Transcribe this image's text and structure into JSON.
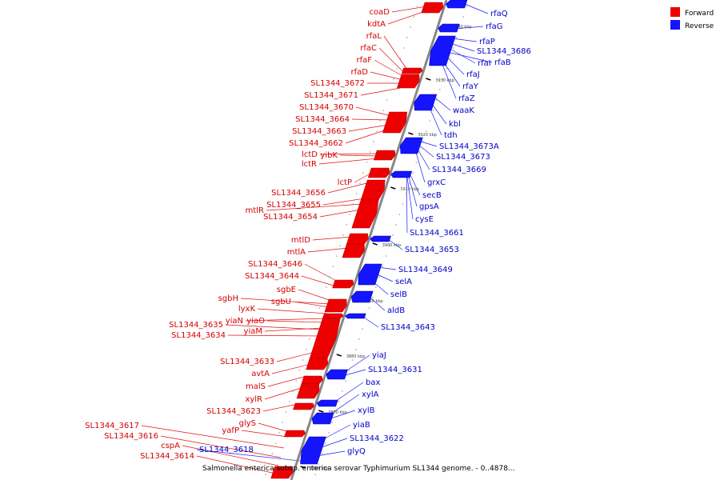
{
  "colors": {
    "forward": "#ee0000",
    "reverse": "#1414ff",
    "backbone": "#888888"
  },
  "legend": [
    {
      "label": "Forward",
      "strand": "forward"
    },
    {
      "label": "Reverse",
      "strand": "reverse"
    }
  ],
  "caption": "Salmonella enterica subsp. enterica serovar Typhimurium SL1344 genome. - 0..4878...",
  "ticks": [
    "3940 kbp",
    "3930 kbp",
    "3920 kbp",
    "3910 kbp",
    "3900 kbp",
    "3890 kbp",
    "3880 kbp",
    "3870 kbp",
    "3860 kbp"
  ],
  "forward_genes": [
    "coaD",
    "kdtA",
    "rfaL",
    "rfaC",
    "rfaF",
    "rfaD",
    "SL1344_3672",
    "SL1344_3671",
    "SL1344_3670",
    "SL1344_3664",
    "SL1344_3663",
    "SL1344_3662",
    "lctD",
    "yibK",
    "lctR",
    "lctP",
    "SL1344_3656",
    "SL1344_3655",
    "mtlR",
    "SL1344_3654",
    "mtlD",
    "mtlA",
    "SL1344_3646",
    "SL1344_3644",
    "sgbE",
    "sgbH",
    "sgbU",
    "lyxK",
    "yiaN",
    "yiaO",
    "yiaM",
    "SL1344_3635",
    "SL1344_3634",
    "SL1344_3633",
    "avtA",
    "malS",
    "xylR",
    "SL1344_3623",
    "glyS",
    "yafP",
    "SL1344_3617",
    "SL1344_3616",
    "cspA",
    "SL1344_3614"
  ],
  "reverse_genes": [
    "rfaQ",
    "rfaG",
    "rfaP",
    "SL1344_3686",
    "rfaI",
    "rfaB",
    "rfaJ",
    "rfaY",
    "rfaZ",
    "waaK",
    "kbl",
    "tdh",
    "SL1344_3673A",
    "SL1344_3673",
    "SL1344_3669",
    "grxC",
    "secB",
    "gpsA",
    "cysE",
    "SL1344_3661",
    "SL1344_3653",
    "SL1344_3649",
    "selA",
    "selB",
    "aldB",
    "SL1344_3643",
    "yiaJ",
    "SL1344_3631",
    "bax",
    "xylA",
    "xylB",
    "yiaB",
    "SL1344_3622",
    "glyQ",
    "SL1344_3618"
  ]
}
